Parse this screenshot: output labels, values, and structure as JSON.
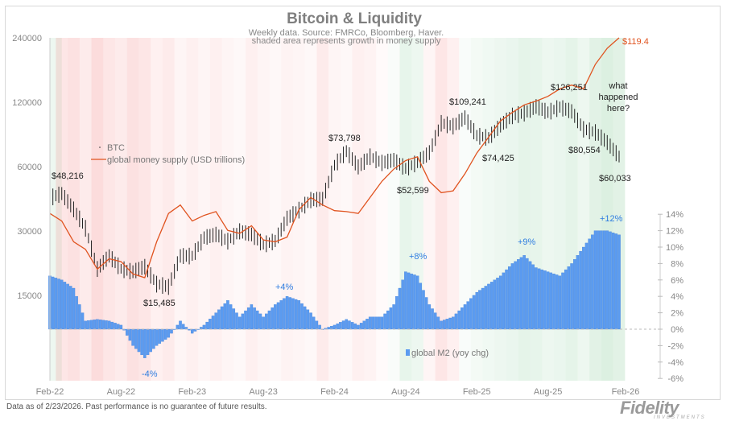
{
  "chart_data": {
    "type": "bar+line+candlestick",
    "title": "Bitcoin & Liquidity",
    "subtitle": [
      "Weekly data.  Source: FMRCo, Bloomberg, Haver.",
      "shaded area represents growth in money supply"
    ],
    "x_tick_labels": [
      "Feb-22",
      "Aug-22",
      "Feb-23",
      "Aug-23",
      "Feb-24",
      "Aug-24",
      "Feb-25",
      "Aug-25",
      "Feb-26"
    ],
    "months": [
      "Feb-22",
      "Mar-22",
      "Apr-22",
      "May-22",
      "Jun-22",
      "Jul-22",
      "Aug-22",
      "Sep-22",
      "Oct-22",
      "Nov-22",
      "Dec-22",
      "Jan-23",
      "Feb-23",
      "Mar-23",
      "Apr-23",
      "May-23",
      "Jun-23",
      "Jul-23",
      "Aug-23",
      "Sep-23",
      "Oct-23",
      "Nov-23",
      "Dec-23",
      "Jan-24",
      "Feb-24",
      "Mar-24",
      "Apr-24",
      "May-24",
      "Jun-24",
      "Jul-24",
      "Aug-24",
      "Sep-24",
      "Oct-24",
      "Nov-24",
      "Dec-24",
      "Jan-25",
      "Feb-25",
      "Mar-25",
      "Apr-25",
      "May-25",
      "Jun-25",
      "Jul-25",
      "Aug-25",
      "Sep-25",
      "Oct-25",
      "Nov-25",
      "Dec-25",
      "Jan-26",
      "Feb-26"
    ],
    "left_axis": {
      "scale": "log",
      "ticks": [
        15000,
        30000,
        60000,
        120000,
        240000
      ],
      "tick_labels": [
        "15000",
        "30000",
        "60000",
        "120000",
        "240000"
      ]
    },
    "right_axis": {
      "ticks": [
        -6,
        -4,
        -2,
        0,
        2,
        4,
        6,
        8,
        10,
        12,
        14
      ],
      "tick_labels": [
        "-6%",
        "-4%",
        "-2%",
        "0%",
        "2%",
        "4%",
        "6%",
        "8%",
        "10%",
        "12%",
        "14%"
      ]
    },
    "series": [
      {
        "name": "BTC",
        "type": "candlestick",
        "color": "#222222",
        "values": [
          43000,
          45000,
          38000,
          31000,
          20000,
          23000,
          20000,
          19400,
          20500,
          17000,
          16500,
          23000,
          23000,
          28000,
          29000,
          27000,
          30000,
          29000,
          26000,
          27000,
          34500,
          37700,
          42000,
          42500,
          61000,
          71000,
          60000,
          67000,
          62700,
          64600,
          59000,
          63000,
          70000,
          96000,
          93000,
          102000,
          84000,
          82000,
          94000,
          104000,
          107000,
          115000,
          108000,
          114000,
          109000,
          90000,
          87000,
          78000,
          67000
        ]
      },
      {
        "name": "global money supply (USD trillions)",
        "type": "line",
        "color": "#e0531f",
        "values": [
          100.8,
          100,
          97.8,
          97,
          94.9,
          96,
          95.7,
          94.4,
          94,
          97.8,
          100.8,
          101.7,
          100,
          100.6,
          101,
          99,
          98.7,
          99.5,
          98,
          97.8,
          98.3,
          101.2,
          102.5,
          101.7,
          101.1,
          101,
          100.8,
          102.5,
          104.2,
          105.5,
          106.4,
          106.8,
          104.2,
          103,
          103.2,
          105,
          107.2,
          108.9,
          110.6,
          111.5,
          112.3,
          112.7,
          113.2,
          114,
          114.4,
          114,
          116.6,
          118.3,
          119.4
        ]
      },
      {
        "name": "global M2 (yoy chg)",
        "type": "bar",
        "color": "#5b9bf0",
        "values": [
          6.5,
          6,
          5,
          1,
          1.2,
          1,
          0.5,
          -2,
          -3.5,
          -2,
          -1,
          1,
          -0.5,
          0.5,
          2,
          3.5,
          1.5,
          3,
          1.5,
          3,
          4,
          3.5,
          2,
          0,
          0.5,
          1.2,
          0.5,
          1.5,
          1.5,
          3,
          7,
          6.5,
          3,
          1,
          1.5,
          3,
          4.5,
          5.5,
          6.5,
          8,
          9,
          7.5,
          7,
          6.5,
          8,
          10,
          12,
          12,
          11.5
        ]
      }
    ],
    "shading": [
      0.3,
      -0.5,
      -0.6,
      -0.4,
      -0.7,
      -0.5,
      -0.4,
      -0.6,
      -0.5,
      -0.3,
      -0.4,
      -0.2,
      -0.3,
      -0.2,
      -0.3,
      -0.2,
      -0.15,
      -0.3,
      -0.2,
      -0.15,
      -0.25,
      -0.2,
      -0.15,
      -0.4,
      -0.2,
      -0.15,
      -0.3,
      -0.25,
      -0.1,
      0.1,
      0.4,
      0.3,
      -0.2,
      -0.5,
      -0.3,
      0.1,
      0.2,
      0.25,
      0.3,
      0.35,
      0.45,
      0.4,
      0.3,
      0.35,
      0.45,
      0.3,
      0.5,
      0.6,
      0.5
    ],
    "annotations": {
      "btc_48216": "$48,216",
      "btc_15485": "$15,485",
      "btc_73798": "$73,798",
      "btc_52599": "$52,599",
      "btc_109241": "$109,241",
      "btc_74425": "$74,425",
      "btc_126251": "$126,251",
      "btc_80554": "$80,554",
      "btc_60033": "$60,033",
      "money_last": "$119.4",
      "question": [
        "what",
        "happened",
        "here?"
      ],
      "m2_plus4": "+4%",
      "m2_minus4": "-4%",
      "m2_plus8": "+8%",
      "m2_plus9": "+9%",
      "m2_plus12": "+12%"
    },
    "legend_placement": "left-middle and bottom-center",
    "grid": false
  },
  "footer": "Data as of 2/23/2026. Past performance is no guarantee of future results.",
  "logo": "Fidelity",
  "logo_sub": "INVESTMENTS"
}
